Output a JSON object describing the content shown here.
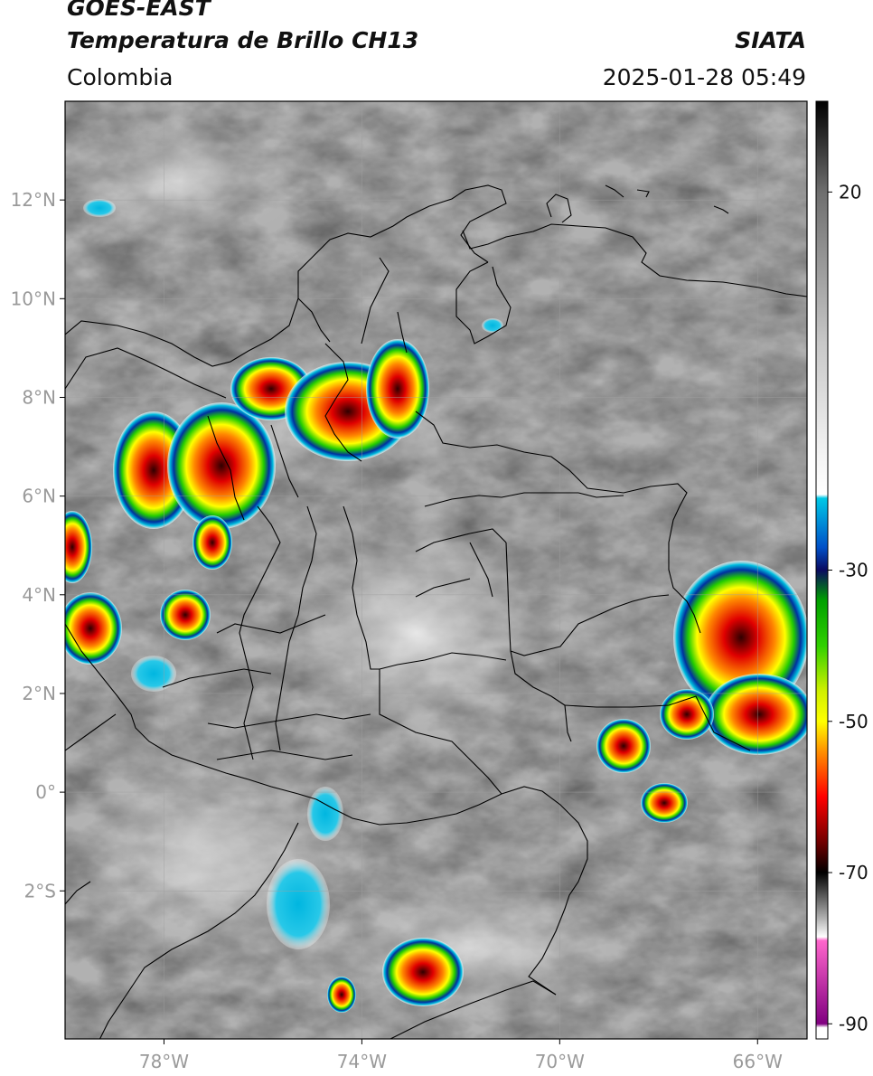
{
  "header": {
    "satellite": "GOES-EAST",
    "product": "Temperatura de Brillo CH13",
    "agency": "SIATA",
    "region": "Colombia",
    "timestamp": "2025-01-28 05:49"
  },
  "map": {
    "lon_range": [
      -80,
      -65
    ],
    "lat_range": [
      -5,
      14
    ],
    "lat_ticks": [
      {
        "value": 12,
        "label": "12°N"
      },
      {
        "value": 10,
        "label": "10°N"
      },
      {
        "value": 8,
        "label": "8°N"
      },
      {
        "value": 6,
        "label": "6°N"
      },
      {
        "value": 4,
        "label": "4°N"
      },
      {
        "value": 2,
        "label": "2°N"
      },
      {
        "value": 0,
        "label": "0°"
      },
      {
        "value": -2,
        "label": "2°S"
      }
    ],
    "lon_ticks": [
      {
        "value": -78,
        "label": "78°W"
      },
      {
        "value": -74,
        "label": "74°W"
      },
      {
        "value": -70,
        "label": "70°W"
      },
      {
        "value": -66,
        "label": "66°W"
      }
    ],
    "grid": true
  },
  "colorbar": {
    "range": [
      -92,
      32
    ],
    "ticks": [
      {
        "value": 20,
        "label": "20"
      },
      {
        "value": -30,
        "label": "-30"
      },
      {
        "value": -50,
        "label": "-50"
      },
      {
        "value": -70,
        "label": "-70"
      },
      {
        "value": -90,
        "label": "-90"
      }
    ],
    "stops": [
      {
        "t": 32,
        "color": "#000000"
      },
      {
        "t": 20,
        "color": "#6e6e6e"
      },
      {
        "t": 0,
        "color": "#c8c8c8"
      },
      {
        "t": -15,
        "color": "#f4f4f4"
      },
      {
        "t": -20,
        "color": "#ffffff"
      },
      {
        "t": -20.5,
        "color": "#00c8e6"
      },
      {
        "t": -27,
        "color": "#0050c8"
      },
      {
        "t": -30,
        "color": "#0a0a60"
      },
      {
        "t": -34,
        "color": "#00a000"
      },
      {
        "t": -40,
        "color": "#30d000"
      },
      {
        "t": -46,
        "color": "#d0f000"
      },
      {
        "t": -50,
        "color": "#ffff00"
      },
      {
        "t": -54,
        "color": "#ff9000"
      },
      {
        "t": -60,
        "color": "#ff0000"
      },
      {
        "t": -66,
        "color": "#700000"
      },
      {
        "t": -70,
        "color": "#000000"
      },
      {
        "t": -76,
        "color": "#b0b0b0"
      },
      {
        "t": -78.5,
        "color": "#ffffff"
      },
      {
        "t": -79,
        "color": "#ff66cc"
      },
      {
        "t": -90,
        "color": "#800080"
      },
      {
        "t": -90.5,
        "color": "#ffffff"
      }
    ]
  }
}
